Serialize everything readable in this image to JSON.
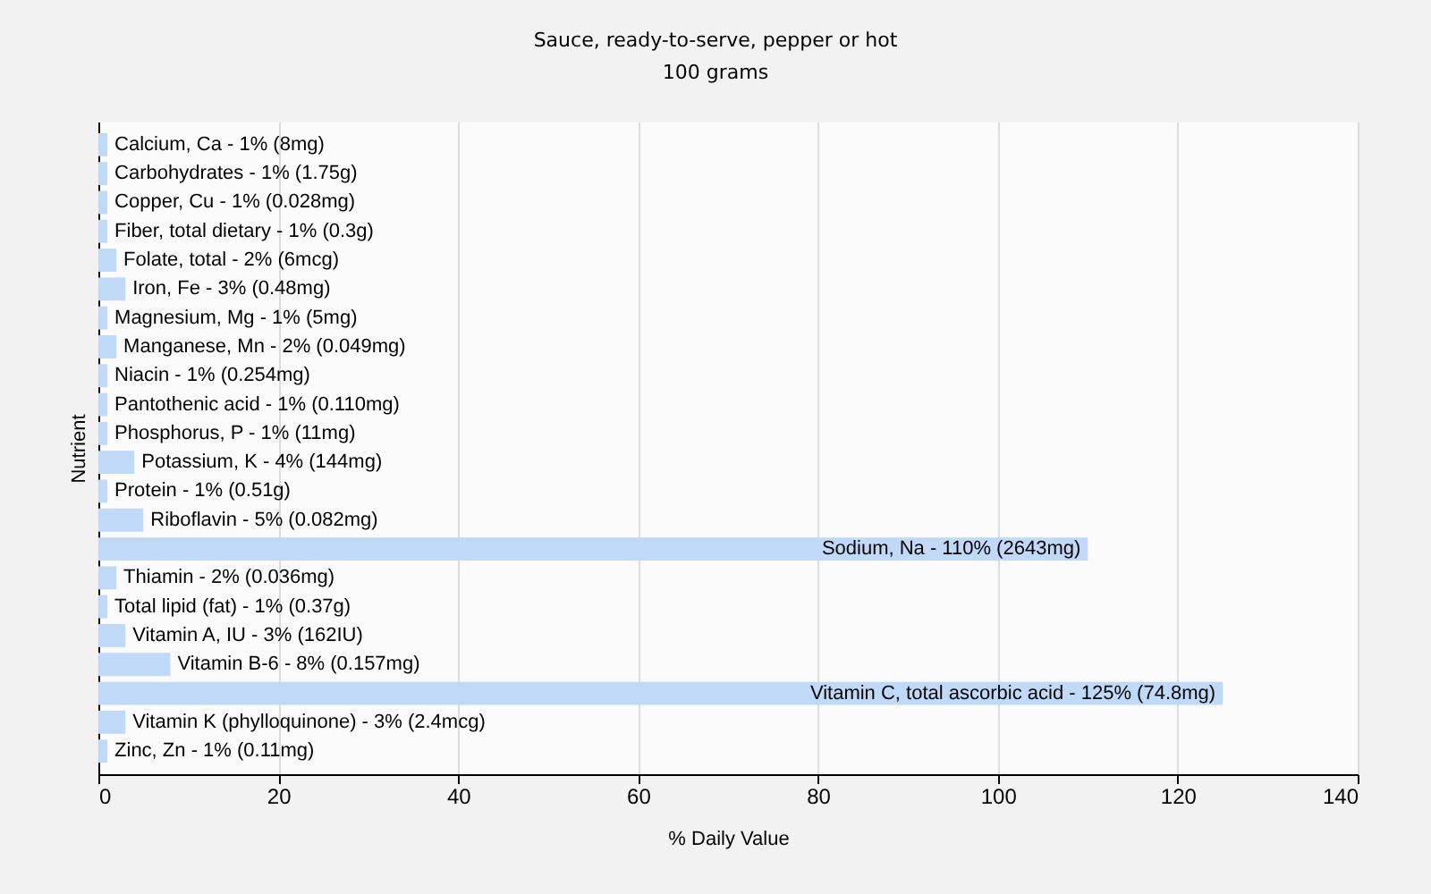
{
  "chart_data": {
    "type": "bar",
    "orientation": "horizontal",
    "title": "Sauce, ready-to-serve, pepper or hot",
    "subtitle": "100 grams",
    "xlabel": "% Daily Value",
    "ylabel": "Nutrient",
    "categories": [
      "Calcium, Ca - 1% (8mg)",
      "Carbohydrates - 1% (1.75g)",
      "Copper, Cu - 1% (0.028mg)",
      "Fiber, total dietary - 1% (0.3g)",
      "Folate, total - 2% (6mcg)",
      "Iron, Fe - 3% (0.48mg)",
      "Magnesium, Mg - 1% (5mg)",
      "Manganese, Mn - 2% (0.049mg)",
      "Niacin - 1% (0.254mg)",
      "Pantothenic acid - 1% (0.110mg)",
      "Phosphorus, P - 1% (11mg)",
      "Potassium, K - 4% (144mg)",
      "Protein - 1% (0.51g)",
      "Riboflavin - 5% (0.082mg)",
      "Sodium, Na - 110% (2643mg)",
      "Thiamin - 2% (0.036mg)",
      "Total lipid (fat) - 1% (0.37g)",
      "Vitamin A, IU - 3% (162IU)",
      "Vitamin B-6 - 8% (0.157mg)",
      "Vitamin C, total ascorbic acid - 125% (74.8mg)",
      "Vitamin K (phylloquinone) - 3% (2.4mcg)",
      "Zinc, Zn - 1% (0.11mg)"
    ],
    "values": [
      1,
      1,
      1,
      1,
      2,
      3,
      1,
      2,
      1,
      1,
      1,
      4,
      1,
      5,
      110,
      2,
      1,
      3,
      8,
      125,
      3,
      1
    ],
    "color": "#bfd9f7",
    "xlim": [
      0,
      140
    ],
    "xticks": [
      0,
      20,
      40,
      60,
      80,
      100,
      120,
      140
    ],
    "grid": "x"
  }
}
